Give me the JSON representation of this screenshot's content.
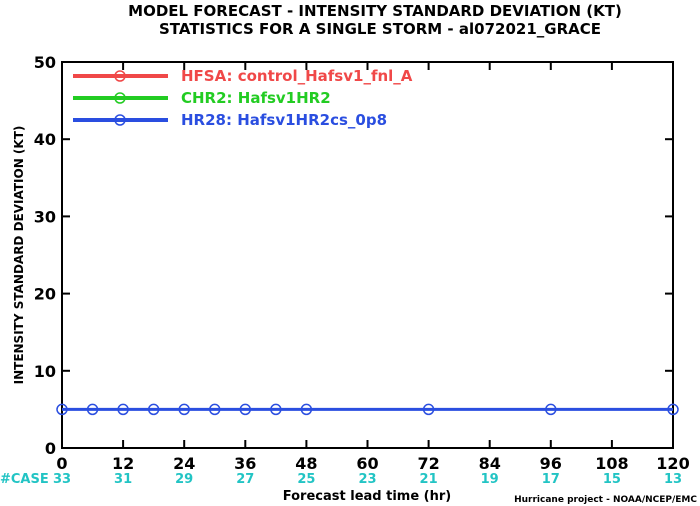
{
  "chart_data": {
    "type": "line",
    "title_line1": "MODEL FORECAST - INTENSITY STANDARD DEVIATION (KT)",
    "title_line2": "STATISTICS FOR A SINGLE STORM - al072021_GRACE",
    "ylabel": "INTENSITY STANDARD DEVIATION (KT)",
    "xlabel": "Forecast lead time (hr)",
    "credit": "Hurricane project - NOAA/NCEP/EMC",
    "ylim": [
      0,
      50
    ],
    "xlim": [
      0,
      120
    ],
    "yticks": [
      0,
      10,
      20,
      30,
      40,
      50
    ],
    "xticks": [
      0,
      12,
      24,
      36,
      48,
      60,
      72,
      84,
      96,
      108,
      120
    ],
    "case_label": "#CASE",
    "case_counts": [
      {
        "x": 0,
        "count": "33"
      },
      {
        "x": 12,
        "count": "31"
      },
      {
        "x": 24,
        "count": "29"
      },
      {
        "x": 36,
        "count": "27"
      },
      {
        "x": 48,
        "count": "25"
      },
      {
        "x": 60,
        "count": "23"
      },
      {
        "x": 72,
        "count": "21"
      },
      {
        "x": 84,
        "count": "19"
      },
      {
        "x": 96,
        "count": "17"
      },
      {
        "x": 108,
        "count": "15"
      },
      {
        "x": 120,
        "count": "13"
      }
    ],
    "grid": false,
    "legend_position": "top-left",
    "series": [
      {
        "name": "HFSA: control_Hafsv1_fnl_A",
        "color": "#f04848",
        "x": [],
        "y": []
      },
      {
        "name": "CHR2: Hafsv1HR2",
        "color": "#22cc22",
        "x": [],
        "y": []
      },
      {
        "name": "HR28: Hafsv1HR2cs_0p8",
        "color": "#2a4ee0",
        "x": [
          0,
          6,
          12,
          18,
          24,
          30,
          36,
          42,
          48,
          72,
          96,
          120
        ],
        "y": [
          5,
          5,
          5,
          5,
          5,
          5,
          5,
          5,
          5,
          5,
          5,
          5
        ]
      }
    ]
  }
}
